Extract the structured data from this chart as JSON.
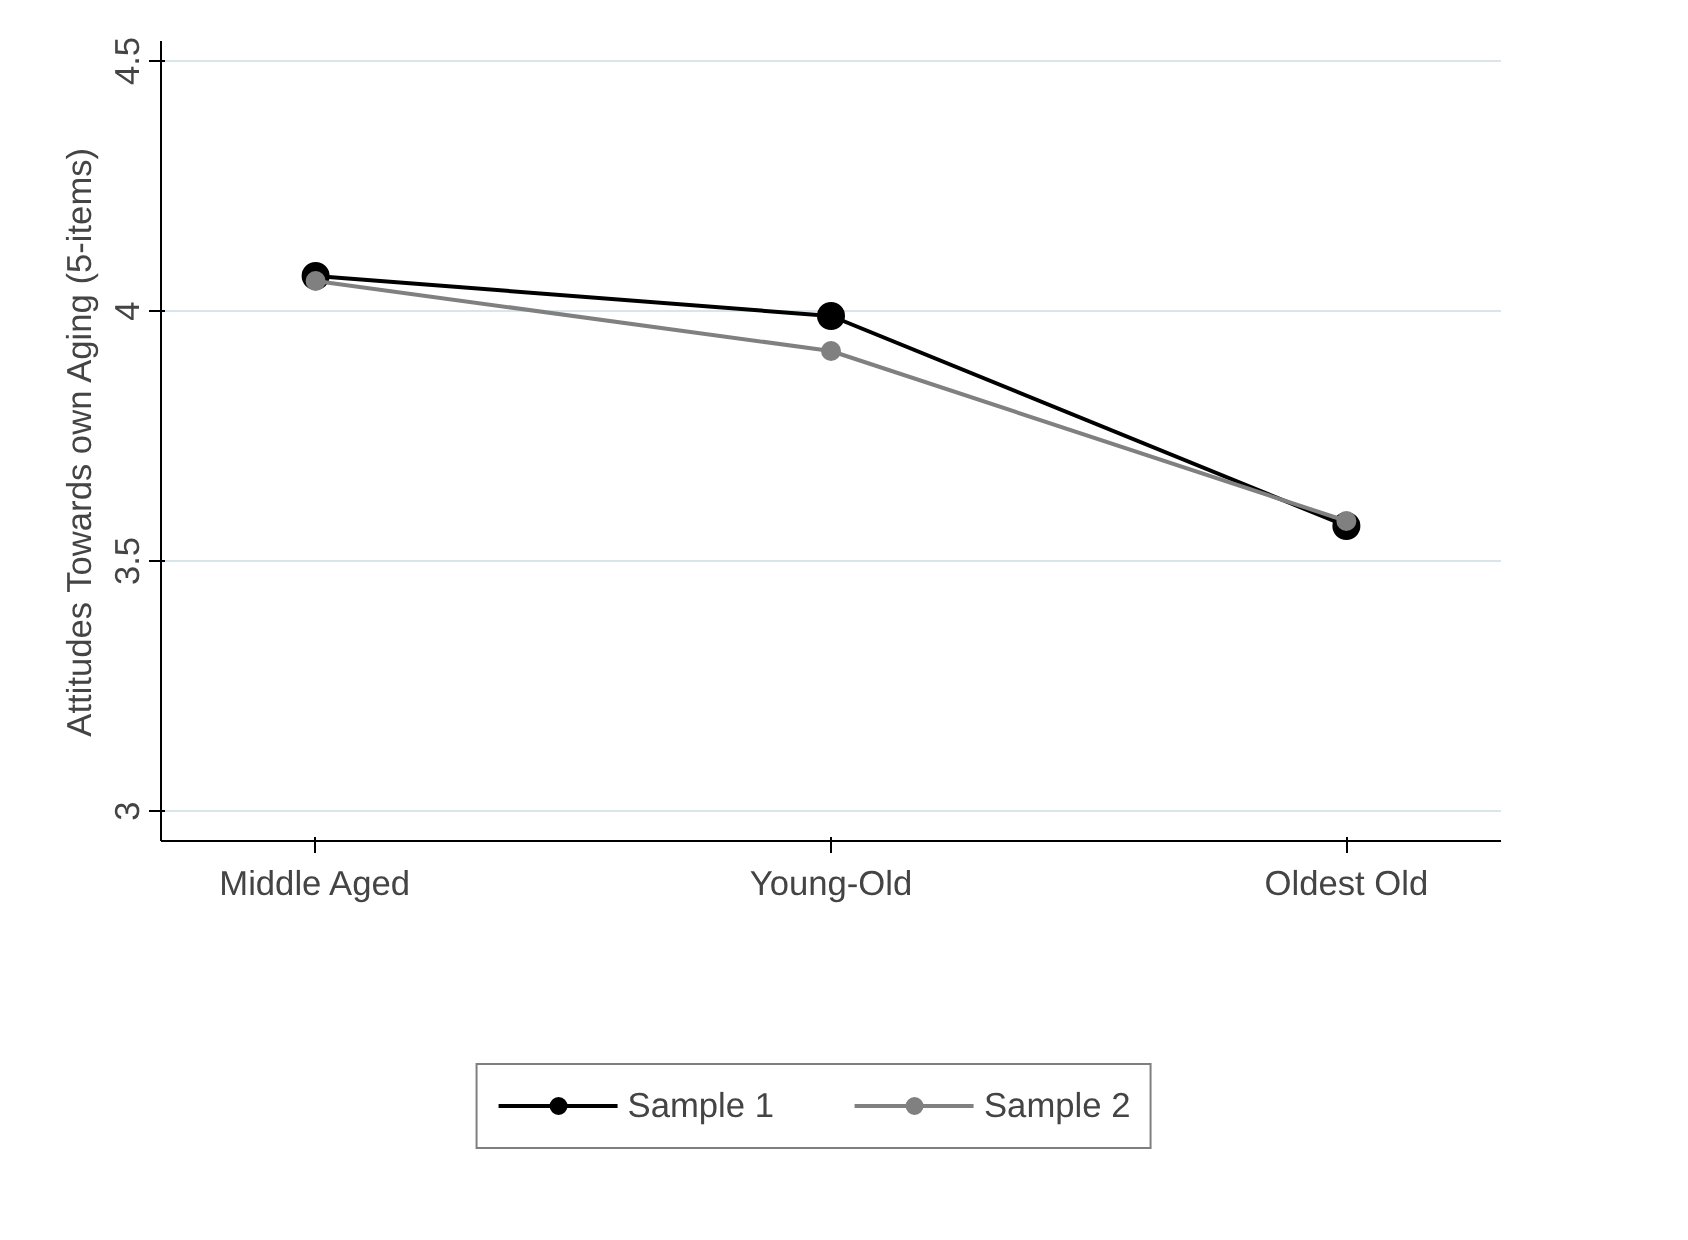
{
  "chart_data": {
    "type": "line",
    "ylabel": "Attitudes Towards own Aging (5-items)",
    "categories": [
      "Middle Aged",
      "Young-Old",
      "Oldest Old"
    ],
    "series": [
      {
        "name": "Sample 1",
        "color": "#000000",
        "values": [
          4.07,
          3.99,
          3.57
        ]
      },
      {
        "name": "Sample 2",
        "color": "#808080",
        "values": [
          4.06,
          3.92,
          3.58
        ]
      }
    ],
    "ylim": [
      2.94,
      4.54
    ],
    "yticks": [
      3,
      3.5,
      4,
      4.5
    ],
    "grid": "y",
    "legend": "bottom",
    "marker": "circle",
    "line_style": "solid"
  }
}
